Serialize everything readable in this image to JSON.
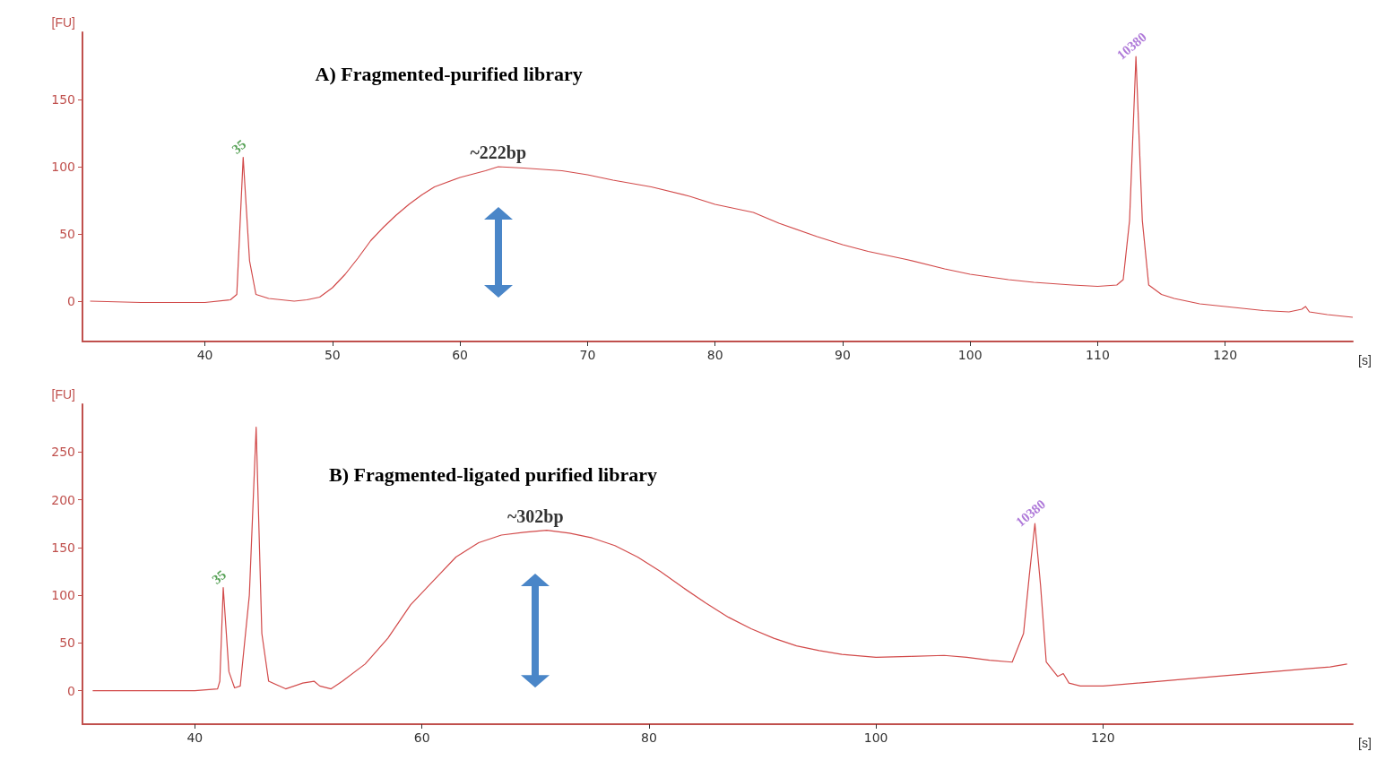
{
  "chart_data": [
    {
      "type": "line",
      "title": "A) Fragmented-purified library",
      "xlabel": "[s]",
      "ylabel": "[FU]",
      "x": [
        31,
        35,
        40,
        42,
        42.5,
        43,
        43.5,
        44,
        45,
        47,
        48,
        49,
        50,
        51,
        52,
        53,
        54,
        55,
        56,
        57,
        58,
        60,
        62,
        63,
        65,
        68,
        70,
        72,
        75,
        78,
        80,
        83,
        85,
        88,
        90,
        92,
        95,
        98,
        100,
        103,
        105,
        108,
        110,
        111.5,
        112,
        112.5,
        113,
        113.5,
        114,
        115,
        116,
        118,
        120,
        123,
        125,
        126,
        126.3,
        126.6,
        128,
        130
      ],
      "series": [
        {
          "color": "#d24a4a",
          "values": [
            0,
            -1,
            -1,
            1,
            5,
            107,
            30,
            5,
            2,
            0,
            1,
            3,
            10,
            20,
            32,
            45,
            55,
            64,
            72,
            79,
            85,
            92,
            97,
            100,
            99,
            97,
            94,
            90,
            85,
            78,
            72,
            66,
            58,
            48,
            42,
            37,
            31,
            24,
            20,
            16,
            14,
            12,
            11,
            12,
            16,
            60,
            182,
            60,
            12,
            5,
            2,
            -2,
            -4,
            -7,
            -8,
            -6,
            -4,
            -8,
            -10,
            -12
          ]
        }
      ],
      "annotations": [
        {
          "text": "35",
          "x": 43,
          "y": 107
        },
        {
          "text": "~222bp",
          "x": 63,
          "y": 100
        },
        {
          "text": "10380",
          "x": 113,
          "y": 182
        }
      ],
      "xlim": [
        30.4,
        130
      ],
      "xticks": [
        40,
        50,
        60,
        70,
        80,
        90,
        100,
        110,
        120
      ],
      "ylim": [
        -30,
        200
      ],
      "yticks": [
        0,
        50,
        100,
        150
      ],
      "grid": false,
      "marker": "none",
      "line_style": "solid"
    },
    {
      "type": "line",
      "title": "B) Fragmented-ligated purified library",
      "xlabel": "[s]",
      "ylabel": "[FU]",
      "x": [
        31,
        40,
        42,
        42.2,
        42.5,
        43,
        43.5,
        44,
        44.8,
        45.4,
        45.9,
        46.5,
        48,
        49.5,
        50.5,
        51,
        52,
        53,
        55,
        57,
        59,
        61,
        63,
        65,
        67,
        69,
        71,
        73,
        75,
        77,
        79,
        81,
        83,
        85,
        87,
        89,
        91,
        93,
        95,
        97,
        100,
        103,
        106,
        108,
        110,
        112,
        113,
        113.5,
        114,
        114.5,
        115,
        116,
        116.5,
        117,
        118,
        120,
        125,
        130,
        135,
        138,
        140,
        141.5
      ],
      "series": [
        {
          "color": "#d24a4a",
          "values": [
            0,
            0,
            2,
            10,
            108,
            20,
            3,
            5,
            100,
            276,
            60,
            10,
            2,
            8,
            10,
            5,
            2,
            10,
            28,
            55,
            90,
            115,
            140,
            155,
            163,
            166,
            168,
            165,
            160,
            152,
            140,
            125,
            108,
            92,
            77,
            65,
            55,
            47,
            42,
            38,
            35,
            36,
            37,
            35,
            32,
            30,
            60,
            120,
            175,
            110,
            30,
            15,
            18,
            8,
            5,
            5,
            10,
            15,
            20,
            23,
            25,
            28
          ]
        }
      ],
      "annotations": [
        {
          "text": "35",
          "x": 42.5,
          "y": 108
        },
        {
          "text": "~302bp",
          "x": 70,
          "y": 168
        },
        {
          "text": "10380",
          "x": 114,
          "y": 175
        }
      ],
      "xlim": [
        30.1,
        142
      ],
      "xticks": [
        40,
        60,
        80,
        100,
        120
      ],
      "ylim": [
        -35,
        300
      ],
      "yticks": [
        0,
        50,
        100,
        150,
        200,
        250
      ],
      "grid": false,
      "marker": "none",
      "line_style": "solid"
    }
  ]
}
